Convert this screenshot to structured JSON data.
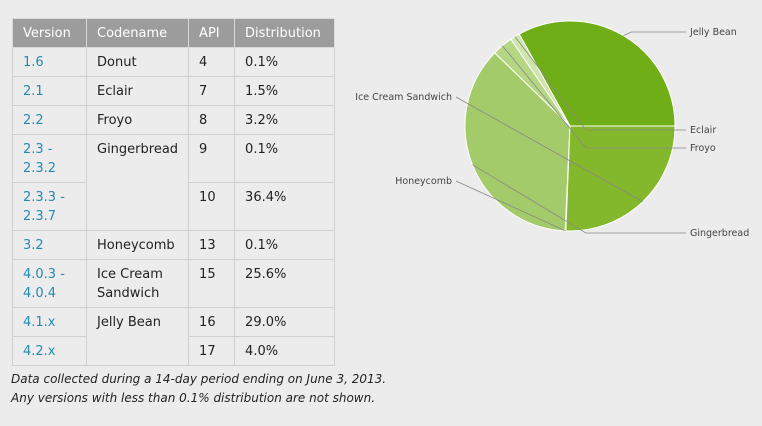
{
  "table": {
    "headers": [
      "Version",
      "Codename",
      "API",
      "Distribution"
    ],
    "rows": [
      {
        "version": "1.6",
        "codename": "Donut",
        "api": "4",
        "distribution": "0.1%"
      },
      {
        "version": "2.1",
        "codename": "Eclair",
        "api": "7",
        "distribution": "1.5%"
      },
      {
        "version": "2.2",
        "codename": "Froyo",
        "api": "8",
        "distribution": "3.2%"
      },
      {
        "version": "2.3 - 2.3.2",
        "codename": "Gingerbread",
        "api": "9",
        "distribution": "0.1%"
      },
      {
        "version": "2.3.3 - 2.3.7",
        "codename": "",
        "api": "10",
        "distribution": "36.4%"
      },
      {
        "version": "3.2",
        "codename": "Honeycomb",
        "api": "13",
        "distribution": "0.1%"
      },
      {
        "version": "4.0.3 - 4.0.4",
        "codename": "Ice Cream Sandwich",
        "api": "15",
        "distribution": "25.6%"
      },
      {
        "version": "4.1.x",
        "codename": "Jelly Bean",
        "api": "16",
        "distribution": "29.0%"
      },
      {
        "version": "4.2.x",
        "codename": "",
        "api": "17",
        "distribution": "4.0%"
      }
    ]
  },
  "note": {
    "line1": "Data collected during a 14-day period ending on June 3, 2013.",
    "line2": "Any versions with less than 0.1% distribution are not shown."
  },
  "chart_data": {
    "type": "pie",
    "slices": [
      {
        "label": "Jelly Bean",
        "value": 33.0,
        "color": "#6fae16"
      },
      {
        "label": "Eclair",
        "value": 1.5,
        "color": "#cfe5ac"
      },
      {
        "label": "Froyo",
        "value": 3.2,
        "color": "#b5d783"
      },
      {
        "label": "Gingerbread",
        "value": 36.5,
        "color": "#a4cb69"
      },
      {
        "label": "Honeycomb",
        "value": 0.1,
        "color": "#92c148"
      },
      {
        "label": "Ice Cream Sandwich",
        "value": 25.6,
        "color": "#84b82c"
      }
    ],
    "start_angle_deg": 0,
    "direction": "counterclockwise",
    "stroke": "#ffffff"
  }
}
